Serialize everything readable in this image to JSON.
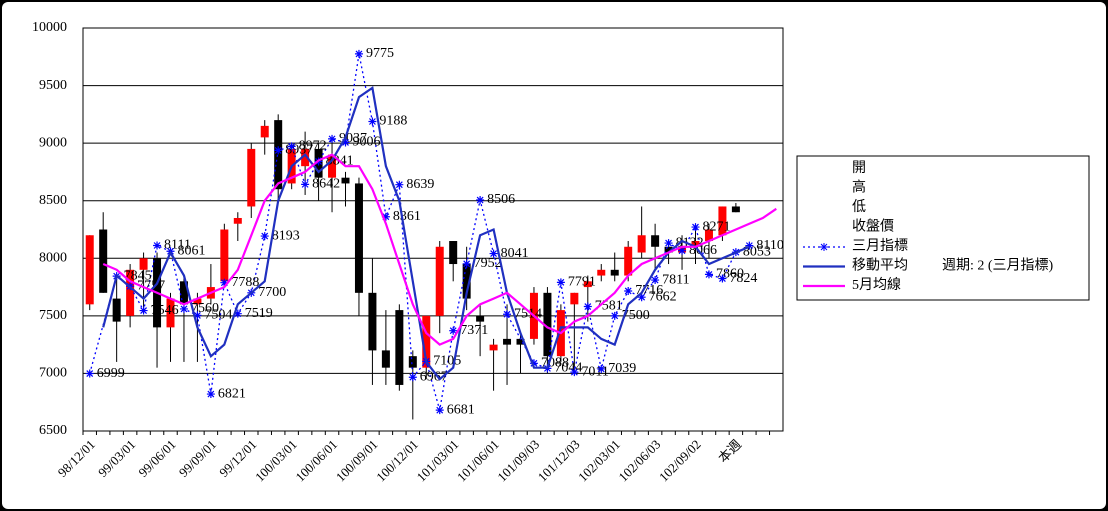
{
  "chart_data": {
    "type": "candlestick",
    "categories": [
      "98/12/01",
      null,
      null,
      "99/03/01",
      null,
      null,
      "99/06/01",
      null,
      null,
      "99/09/01",
      null,
      null,
      "99/12/01",
      null,
      null,
      "100/03/01",
      null,
      null,
      "100/06/01",
      null,
      null,
      "100/09/01",
      null,
      null,
      "100/12/01",
      null,
      null,
      "101/03/01",
      null,
      null,
      "101/06/01",
      null,
      null,
      "101/09/03",
      null,
      null,
      "101/12/03",
      null,
      null,
      "102/03/01",
      null,
      null,
      "102/06/03",
      null,
      null,
      "102/09/02",
      null,
      null,
      "本週",
      null,
      null,
      null
    ],
    "ylim": [
      6500,
      10000
    ],
    "yticks": [
      6500,
      7000,
      7500,
      8000,
      8500,
      9000,
      9500,
      10000
    ],
    "grid": true,
    "ohlc": {
      "names": [
        "開",
        "高",
        "低",
        "收盤價"
      ],
      "up_color": "#ff0000",
      "down_color": "#000000",
      "open": [
        7600,
        8250,
        7650,
        7500,
        7900,
        8000,
        7400,
        7800,
        7600,
        7650,
        7800,
        8300,
        8450,
        9050,
        9200,
        8650,
        8800,
        8950,
        8700,
        8700,
        8650,
        7700,
        7200,
        7550,
        7150,
        7050,
        7500,
        8150,
        7950,
        7500,
        7200,
        7300,
        7300,
        7300,
        7700,
        7150,
        7600,
        7750,
        7850,
        7900,
        7850,
        8050,
        8200,
        8100,
        8050,
        8100,
        8150,
        8200,
        8450,
        null,
        null,
        null
      ],
      "high": [
        8200,
        8400,
        7850,
        7950,
        8050,
        8050,
        7700,
        7850,
        7700,
        7950,
        8300,
        8400,
        9000,
        9200,
        9250,
        9000,
        9100,
        9000,
        9050,
        8750,
        8700,
        8000,
        7550,
        7600,
        7200,
        7500,
        8150,
        8150,
        8100,
        7600,
        7300,
        7600,
        7350,
        7750,
        7750,
        7600,
        7700,
        7850,
        7950,
        8050,
        8150,
        8450,
        8300,
        8150,
        8200,
        8250,
        8300,
        8450,
        8480,
        null,
        null,
        null
      ],
      "low": [
        7550,
        7700,
        7100,
        7400,
        7550,
        7050,
        7100,
        7100,
        7100,
        7600,
        7750,
        8150,
        8350,
        8900,
        8500,
        8600,
        8550,
        8500,
        8400,
        8450,
        7500,
        6900,
        6900,
        6850,
        6600,
        6950,
        7350,
        7800,
        7550,
        7150,
        6850,
        6900,
        7000,
        7250,
        7000,
        7100,
        7050,
        7450,
        7800,
        7800,
        7800,
        8000,
        7900,
        7950,
        7900,
        7950,
        8000,
        8150,
        8400,
        null,
        null,
        null
      ],
      "close": [
        8200,
        7700,
        7450,
        7900,
        8000,
        7400,
        7650,
        7600,
        7650,
        7750,
        8250,
        8350,
        8950,
        9150,
        8600,
        8950,
        8950,
        8700,
        8900,
        8650,
        7700,
        7200,
        7050,
        6900,
        7050,
        7500,
        8100,
        7950,
        7650,
        7450,
        7250,
        7250,
        7250,
        7700,
        7150,
        7550,
        7700,
        7800,
        7900,
        7850,
        8100,
        8200,
        8100,
        8050,
        8100,
        8150,
        8250,
        8450,
        8400,
        null,
        null,
        null
      ]
    },
    "series": [
      {
        "name": "三月指標",
        "color": "#0000ff",
        "style": "dotted",
        "marker": "star",
        "labels": true,
        "values": [
          6999,
          null,
          7845,
          7757,
          7546,
          8111,
          8061,
          7560,
          7504,
          6821,
          7788,
          7519,
          7700,
          8193,
          8937,
          8972,
          8642,
          8841,
          9037,
          9006,
          9775,
          9188,
          8361,
          8639,
          6967,
          7105,
          6681,
          7371,
          7952,
          8506,
          8041,
          7514,
          null,
          7088,
          7044,
          7791,
          7011,
          7581,
          7039,
          7500,
          7716,
          7662,
          7811,
          8132,
          8066,
          8271,
          7860,
          7824,
          8053,
          8110,
          null,
          null
        ]
      },
      {
        "name": "移動平均",
        "color": "#2030c0",
        "style": "solid",
        "values": [
          null,
          7400,
          7850,
          7750,
          7650,
          7780,
          8050,
          7850,
          7400,
          7150,
          7250,
          7600,
          7700,
          7800,
          8500,
          8800,
          8900,
          8750,
          8850,
          9050,
          9400,
          9480,
          8800,
          8500,
          7800,
          7100,
          6950,
          7050,
          7700,
          8200,
          8250,
          7700,
          7350,
          7050,
          7050,
          7400,
          7400,
          7400,
          7300,
          7250,
          7600,
          7700,
          7900,
          8050,
          8150,
          8100,
          7950,
          8000,
          8050,
          8100,
          null,
          null
        ]
      },
      {
        "name": "5月均線",
        "color": "#ff00ff",
        "style": "solid",
        "values": [
          null,
          7950,
          7900,
          7800,
          7750,
          7700,
          7650,
          7600,
          7650,
          7700,
          7750,
          7900,
          8200,
          8500,
          8650,
          8700,
          8750,
          8850,
          8900,
          8800,
          8800,
          8600,
          8300,
          7950,
          7600,
          7350,
          7250,
          7300,
          7500,
          7600,
          7650,
          7700,
          7600,
          7500,
          7400,
          7350,
          7450,
          7500,
          7600,
          7700,
          7850,
          7950,
          8000,
          8050,
          8100,
          8100,
          8150,
          8200,
          8250,
          8300,
          8350,
          8430
        ]
      }
    ],
    "annotation": "週期: 2 (三月指標)"
  }
}
